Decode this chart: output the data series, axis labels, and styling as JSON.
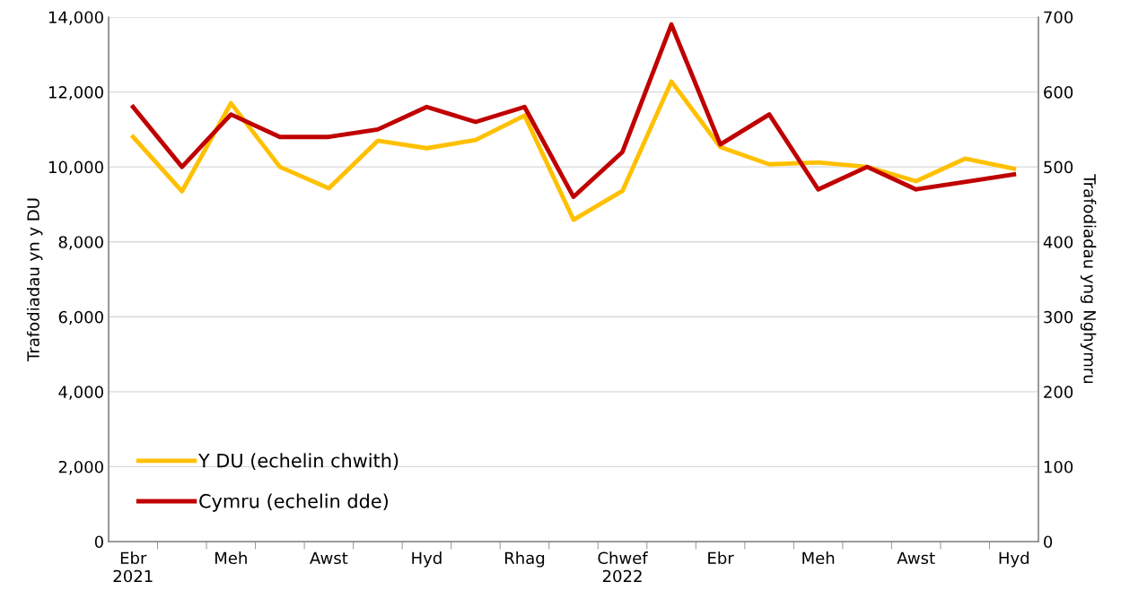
{
  "chart_data": {
    "type": "line",
    "categories": [
      "Ebr\n2021",
      null,
      "Meh",
      null,
      "Awst",
      null,
      "Hyd",
      null,
      "Rhag",
      null,
      "Chwef\n2022",
      null,
      "Ebr",
      null,
      "Meh",
      null,
      "Awst",
      null,
      "Hyd"
    ],
    "series": [
      {
        "name": "Y DU (echelin chwith)",
        "color": "#ffc000",
        "values": [
          10800,
          9350,
          11700,
          10000,
          9430,
          10700,
          10500,
          10720,
          11370,
          8590,
          9360,
          12280,
          10530,
          10070,
          10120,
          10000,
          9620,
          10220,
          9950
        ]
      },
      {
        "name": "Cymru (echelin dde)",
        "color": "#c00000",
        "axis": "y2",
        "values": [
          580,
          500,
          570,
          540,
          540,
          550,
          580,
          560,
          580,
          460,
          520,
          690,
          530,
          570,
          470,
          500,
          470,
          480,
          490
        ]
      }
    ],
    "ylabel": "Trafodiadau yn y DU",
    "y2label": "Trafodiadau yng Nghymru",
    "ylim": [
      0,
      14000
    ],
    "yticks": [
      {
        "value": 0,
        "label": "0"
      },
      {
        "value": 2000,
        "label": "2,000"
      },
      {
        "value": 4000,
        "label": "4,000"
      },
      {
        "value": 6000,
        "label": "6,000"
      },
      {
        "value": 8000,
        "label": "8,000"
      },
      {
        "value": 10000,
        "label": "10,000"
      },
      {
        "value": 12000,
        "label": "12,000"
      },
      {
        "value": 14000,
        "label": "14,000"
      }
    ],
    "y2lim": [
      0,
      700
    ],
    "y2ticks": [
      0,
      100,
      200,
      300,
      400,
      500,
      600,
      700
    ],
    "grid": "y",
    "legend": "bottom left"
  }
}
